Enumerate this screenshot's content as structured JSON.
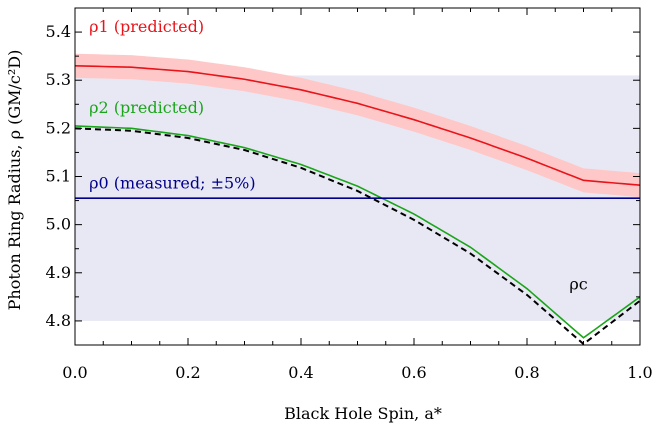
{
  "chart_data": {
    "type": "line",
    "xlabel": "Black Hole Spin, a*",
    "ylabel": "Photon Ring Radius, ρ (GM/c²D)",
    "xlim": [
      0.0,
      1.0
    ],
    "ylim": [
      4.75,
      5.45
    ],
    "x_ticks": [
      "0.0",
      "0.2",
      "0.4",
      "0.6",
      "0.8",
      "1.0"
    ],
    "y_ticks": [
      "4.8",
      "4.9",
      "5.0",
      "5.1",
      "5.2",
      "5.3",
      "5.4"
    ],
    "grid": false,
    "measured_band": {
      "y_low": 4.8,
      "y_high": 5.31,
      "color": "#e8e8f4"
    },
    "x": [
      0.0,
      0.1,
      0.2,
      0.3,
      0.4,
      0.5,
      0.6,
      0.7,
      0.8,
      0.9,
      1.0
    ],
    "series": [
      {
        "name": "ρ1 (predicted)",
        "label": "ρ1 (predicted)",
        "color": "#e8141a",
        "band_color": "#ffc8c8",
        "band_halfwidth": 0.025,
        "y": [
          5.33,
          5.327,
          5.318,
          5.302,
          5.28,
          5.252,
          5.218,
          5.18,
          5.138,
          5.092,
          5.082
        ]
      },
      {
        "name": "ρ2 (predicted)",
        "label": "ρ2 (predicted)",
        "color": "#1aa51a",
        "y": [
          5.205,
          5.2,
          5.185,
          5.16,
          5.125,
          5.08,
          5.022,
          4.953,
          4.867,
          4.765,
          4.85
        ]
      },
      {
        "name": "ρ0 (measured; ±5%)",
        "label": "ρ0 (measured; ±5%)",
        "color": "#00008b",
        "y": [
          5.055,
          5.055,
          5.055,
          5.055,
          5.055,
          5.055,
          5.055,
          5.055,
          5.055,
          5.055,
          5.055
        ]
      },
      {
        "name": "ρc",
        "label": "ρc",
        "color": "#000000",
        "dashed": true,
        "y": [
          5.2,
          5.195,
          5.18,
          5.155,
          5.118,
          5.07,
          5.01,
          4.94,
          4.854,
          4.752,
          4.842
        ]
      }
    ]
  }
}
